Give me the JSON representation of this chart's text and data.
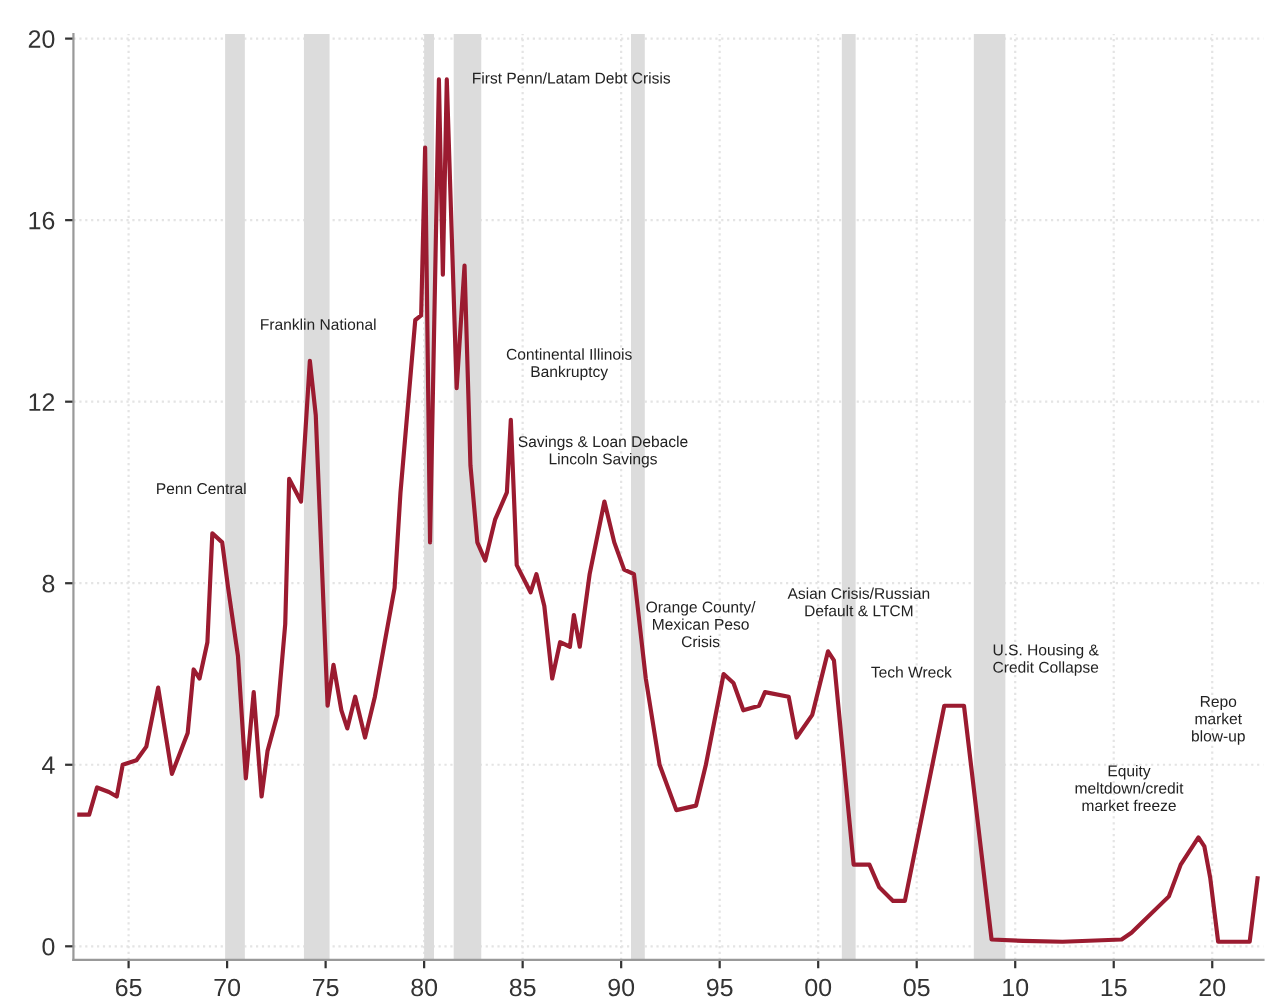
{
  "chart_data": {
    "type": "line",
    "x": [
      1962.5,
      1963.0,
      1963.4,
      1964.0,
      1964.4,
      1964.7,
      1965.4,
      1965.9,
      1966.5,
      1967.2,
      1968.0,
      1968.3,
      1968.6,
      1969.0,
      1969.25,
      1969.75,
      1970.05,
      1970.55,
      1970.95,
      1971.35,
      1971.75,
      1972.05,
      1972.55,
      1972.95,
      1973.15,
      1973.75,
      1974.2,
      1974.5,
      1975.1,
      1975.4,
      1975.8,
      1976.1,
      1976.5,
      1977.0,
      1977.5,
      1978.0,
      1978.5,
      1978.8,
      1979.55,
      1979.85,
      1980.05,
      1980.3,
      1980.75,
      1980.95,
      1981.15,
      1981.65,
      1982.05,
      1982.35,
      1982.7,
      1983.1,
      1983.6,
      1984.2,
      1984.4,
      1984.7,
      1985.4,
      1985.7,
      1986.1,
      1986.5,
      1986.9,
      1987.4,
      1987.6,
      1987.9,
      1988.4,
      1989.15,
      1989.65,
      1990.15,
      1990.65,
      1991.25,
      1991.95,
      1992.8,
      1993.8,
      1994.3,
      1995.2,
      1995.7,
      1996.2,
      1997.0,
      1997.3,
      1998.5,
      1998.9,
      1999.7,
      2000.5,
      2000.8,
      2001.8,
      2002.6,
      2003.1,
      2003.8,
      2004.4,
      2006.4,
      2007.4,
      2008.3,
      2008.8,
      2010.4,
      2012.4,
      2015.4,
      2015.9,
      2017.8,
      2018.4,
      2019.3,
      2019.6,
      2019.9,
      2020.3,
      2021.9,
      2022.3
    ],
    "series": [
      {
        "color": "#9b1b30",
        "values": [
          2.9,
          2.9,
          3.5,
          3.4,
          3.3,
          4.0,
          4.1,
          4.4,
          5.7,
          3.8,
          4.7,
          6.1,
          5.9,
          6.7,
          9.1,
          8.9,
          7.9,
          6.4,
          3.7,
          5.6,
          3.3,
          4.3,
          5.1,
          7.1,
          10.3,
          9.8,
          12.9,
          11.7,
          5.3,
          6.2,
          5.2,
          4.8,
          5.5,
          4.6,
          5.5,
          6.7,
          7.9,
          10.0,
          13.8,
          13.9,
          17.6,
          8.9,
          19.1,
          14.8,
          19.1,
          12.3,
          15.0,
          10.6,
          8.9,
          8.5,
          9.4,
          10.0,
          11.6,
          8.4,
          7.8,
          8.2,
          7.5,
          5.9,
          6.7,
          6.6,
          7.3,
          6.6,
          8.2,
          9.8,
          8.9,
          8.3,
          8.2,
          5.9,
          4.0,
          3.0,
          3.1,
          4.0,
          6.0,
          5.8,
          5.2,
          5.3,
          5.6,
          5.5,
          4.6,
          5.1,
          6.5,
          6.3,
          1.8,
          1.8,
          1.3,
          1.0,
          1.0,
          5.3,
          5.3,
          2.0,
          0.15,
          0.12,
          0.1,
          0.15,
          0.3,
          1.1,
          1.8,
          2.4,
          2.2,
          1.5,
          0.1,
          0.1,
          1.5
        ]
      }
    ],
    "xlim": [
      1962.2,
      2022.6
    ],
    "xticks": [
      {
        "value": 1965,
        "label": "65"
      },
      {
        "value": 1970,
        "label": "70"
      },
      {
        "value": 1975,
        "label": "75"
      },
      {
        "value": 1980,
        "label": "80"
      },
      {
        "value": 1985,
        "label": "85"
      },
      {
        "value": 1990,
        "label": "90"
      },
      {
        "value": 1995,
        "label": "95"
      },
      {
        "value": 2000,
        "label": "00"
      },
      {
        "value": 2005,
        "label": "05"
      },
      {
        "value": 2010,
        "label": "10"
      },
      {
        "value": 2015,
        "label": "15"
      },
      {
        "value": 2020,
        "label": "20"
      }
    ],
    "ylim": [
      -0.3,
      20.1
    ],
    "yticks": [
      0,
      4,
      8,
      12,
      16,
      20
    ],
    "grid": true,
    "legend": false,
    "line_style": "solid",
    "bands": [
      {
        "axis": "x",
        "from": 1969.9,
        "to": 1970.9,
        "color": "#dcdcdc"
      },
      {
        "axis": "x",
        "from": 1973.9,
        "to": 1975.2,
        "color": "#dcdcdc"
      },
      {
        "axis": "x",
        "from": 1980.0,
        "to": 1980.5,
        "color": "#dcdcdc"
      },
      {
        "axis": "x",
        "from": 1981.5,
        "to": 1982.9,
        "color": "#dcdcdc"
      },
      {
        "axis": "x",
        "from": 1990.5,
        "to": 1991.2,
        "color": "#dcdcdc"
      },
      {
        "axis": "x",
        "from": 2001.2,
        "to": 2001.9,
        "color": "#dcdcdc"
      },
      {
        "axis": "x",
        "from": 2007.9,
        "to": 2009.5,
        "color": "#dcdcdc"
      }
    ],
    "annotations": [
      {
        "text": "Penn Central",
        "x": 1969.25,
        "y": 9.1
      },
      {
        "text": "Franklin National",
        "x": 1974.2,
        "y": 12.9
      },
      {
        "text": "First Penn/Latam Debt Crisis",
        "x": 1981.15,
        "y": 19.1
      },
      {
        "text": "Continental Illinois\nBankruptcy",
        "x": 1984.4,
        "y": 11.6
      },
      "Savings & Loan Debacle\nLincoln Savings",
      "Orange County/\nMexican Peso\nCrisis",
      "Asian Crisis/Russian\nDefault & LTCM",
      {
        "text": "Tech Wreck",
        "x": 2000.5,
        "y": 6.5
      },
      "U.S. Housing &\nCredit Collapse",
      "Equity\nmeltdown/credit\nmarket freeze",
      "Repo\nmarket\nblow-up"
    ]
  }
}
